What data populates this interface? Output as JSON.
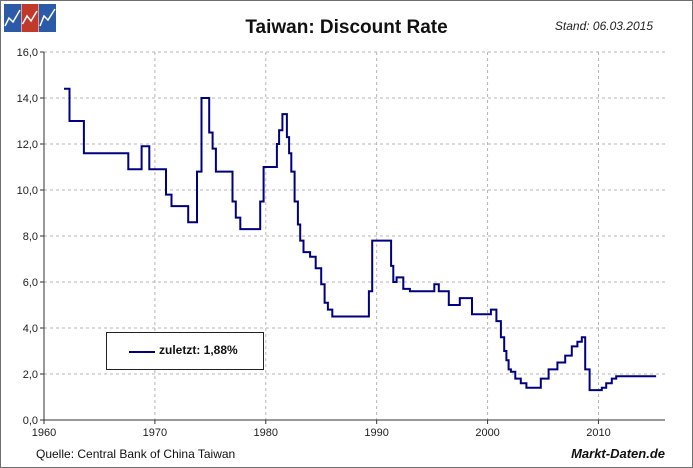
{
  "header": {
    "title": "Taiwan: Discount Rate",
    "stand": "Stand: 06.03.2015"
  },
  "footer": {
    "source": "Quelle: Central Bank of China Taiwan",
    "brand": "Markt-Daten.de"
  },
  "legend": {
    "label": "zuletzt: 1,88%"
  },
  "colors": {
    "line": "#000080",
    "grid": "#b4b4b4",
    "logo_blue": "#2a5aa8",
    "logo_red": "#c0392b"
  },
  "chart_data": {
    "type": "line",
    "title": "Taiwan: Discount Rate",
    "xlim": [
      1960,
      2016
    ],
    "ylim": [
      0,
      16
    ],
    "x_ticks": [
      1960,
      1970,
      1980,
      1990,
      2000,
      2010
    ],
    "y_ticks": [
      "0,0",
      "2,0",
      "4,0",
      "6,0",
      "8,0",
      "10,0",
      "12,0",
      "14,0",
      "16,0"
    ],
    "y_tick_values": [
      0,
      2,
      4,
      6,
      8,
      10,
      12,
      14,
      16
    ],
    "grid": true,
    "legend_position": "lower-left",
    "series": [
      {
        "name": "zuletzt: 1,88%",
        "step": true,
        "x": [
          1961.8,
          1962.3,
          1963.6,
          1967.6,
          1968.8,
          1969.5,
          1971.0,
          1971.5,
          1973.0,
          1973.8,
          1974.2,
          1974.9,
          1975.2,
          1975.5,
          1977.0,
          1977.3,
          1977.7,
          1979.5,
          1979.8,
          1981.0,
          1981.2,
          1981.5,
          1981.9,
          1982.1,
          1982.3,
          1982.6,
          1982.9,
          1983.1,
          1983.4,
          1983.7,
          1984.0,
          1984.5,
          1985.0,
          1985.3,
          1985.6,
          1986.0,
          1986.5,
          1989.3,
          1989.6,
          1991.0,
          1991.3,
          1991.5,
          1991.8,
          1992.4,
          1993.0,
          1995.2,
          1995.6,
          1996.5,
          1997.5,
          1998.6,
          2000.3,
          2000.8,
          2001.2,
          2001.5,
          2001.7,
          2001.9,
          2002.1,
          2002.5,
          2003.0,
          2003.5,
          2004.8,
          2005.5,
          2006.3,
          2007.0,
          2007.6,
          2008.1,
          2008.5,
          2008.8,
          2009.2,
          2010.3,
          2010.7,
          2011.2,
          2011.6,
          2015.2
        ],
        "y": [
          14.4,
          13.0,
          11.6,
          10.9,
          11.9,
          10.9,
          9.8,
          9.3,
          8.6,
          10.8,
          14.0,
          12.5,
          11.8,
          10.8,
          9.5,
          8.8,
          8.3,
          9.5,
          11.0,
          12.0,
          12.6,
          13.3,
          12.3,
          11.6,
          10.8,
          9.5,
          8.5,
          7.8,
          7.3,
          7.3,
          7.1,
          6.6,
          5.9,
          5.1,
          4.8,
          4.5,
          4.5,
          5.6,
          7.8,
          7.8,
          6.7,
          6.0,
          6.2,
          5.7,
          5.6,
          5.9,
          5.6,
          5.0,
          5.3,
          4.6,
          4.8,
          4.3,
          3.6,
          3.0,
          2.6,
          2.2,
          2.1,
          1.8,
          1.6,
          1.4,
          1.8,
          2.2,
          2.5,
          2.8,
          3.2,
          3.4,
          3.6,
          2.2,
          1.3,
          1.4,
          1.6,
          1.8,
          1.9,
          1.9
        ]
      }
    ]
  }
}
